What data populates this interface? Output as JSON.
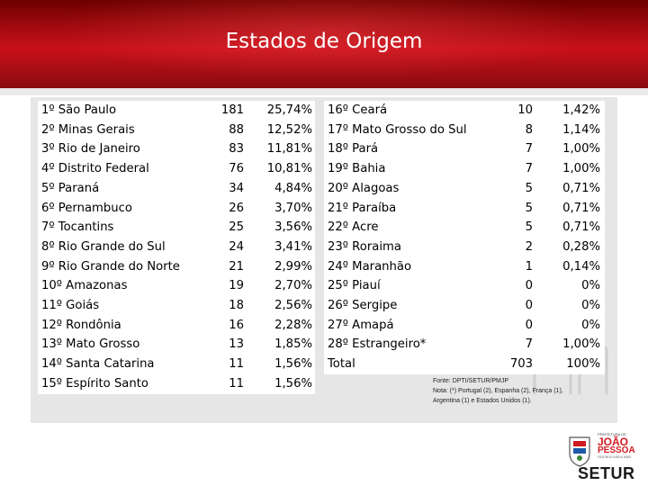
{
  "header": {
    "title": "Estados de Origem"
  },
  "left_table": [
    {
      "state": "1º São Paulo",
      "count": "181",
      "pct": "25,74%"
    },
    {
      "state": "2º Minas Gerais",
      "count": "88",
      "pct": "12,52%"
    },
    {
      "state": "3º Rio de Janeiro",
      "count": "83",
      "pct": "11,81%"
    },
    {
      "state": "4º Distrito Federal",
      "count": "76",
      "pct": "10,81%"
    },
    {
      "state": "5º Paraná",
      "count": "34",
      "pct": "4,84%"
    },
    {
      "state": "6º Pernambuco",
      "count": "26",
      "pct": "3,70%"
    },
    {
      "state": "7º Tocantins",
      "count": "25",
      "pct": "3,56%"
    },
    {
      "state": "8º Rio Grande do Sul",
      "count": "24",
      "pct": "3,41%"
    },
    {
      "state": "9º Rio Grande do Norte",
      "count": "21",
      "pct": "2,99%"
    },
    {
      "state": "10º Amazonas",
      "count": "19",
      "pct": "2,70%"
    },
    {
      "state": "11º Goiás",
      "count": "18",
      "pct": "2,56%"
    },
    {
      "state": "12º Rondônia",
      "count": "16",
      "pct": "2,28%"
    },
    {
      "state": "13º Mato Grosso",
      "count": "13",
      "pct": "1,85%"
    },
    {
      "state": "14º Santa Catarina",
      "count": "11",
      "pct": "1,56%"
    },
    {
      "state": "15º Espírito Santo",
      "count": "11",
      "pct": "1,56%"
    }
  ],
  "right_table": [
    {
      "state": "16º Ceará",
      "count": "10",
      "pct": "1,42%"
    },
    {
      "state": "17º Mato Grosso do Sul",
      "count": "8",
      "pct": "1,14%"
    },
    {
      "state": "18º Pará",
      "count": "7",
      "pct": "1,00%"
    },
    {
      "state": "19º Bahia",
      "count": "7",
      "pct": "1,00%"
    },
    {
      "state": "20º Alagoas",
      "count": "5",
      "pct": "0,71%"
    },
    {
      "state": "21º Paraíba",
      "count": "5",
      "pct": "0,71%"
    },
    {
      "state": "22º Acre",
      "count": "5",
      "pct": "0,71%"
    },
    {
      "state": "23º Roraima",
      "count": "2",
      "pct": "0,28%"
    },
    {
      "state": "24º Maranhão",
      "count": "1",
      "pct": "0,14%"
    },
    {
      "state": "25º Piauí",
      "count": "0",
      "pct": "0%"
    },
    {
      "state": "26º Sergipe",
      "count": "0",
      "pct": "0%"
    },
    {
      "state": "27º Amapá",
      "count": "0",
      "pct": "0%"
    },
    {
      "state": "28º Estrangeiro*",
      "count": "7",
      "pct": "1,00%"
    },
    {
      "state": "Total",
      "count": "703",
      "pct": "100%"
    }
  ],
  "source": {
    "line1": "Fonte: DPTI/SETUR/PMJP",
    "line2": "Nota: (*) Portugal (2), Espanha (2), França (1),",
    "line3": "Argentina (1) e Estados Unidos (1)."
  },
  "logo": {
    "small_top": "PREFEITURA DE",
    "city1": "JOÃO",
    "city2": "PESSOA",
    "sub": "FAZENDO AINDA MAIS",
    "dept": "SETUR"
  },
  "colors": {
    "banner_red": "#c8101a",
    "logo_red": "#d11a1f",
    "panel_gray": "#e6e6e6"
  }
}
